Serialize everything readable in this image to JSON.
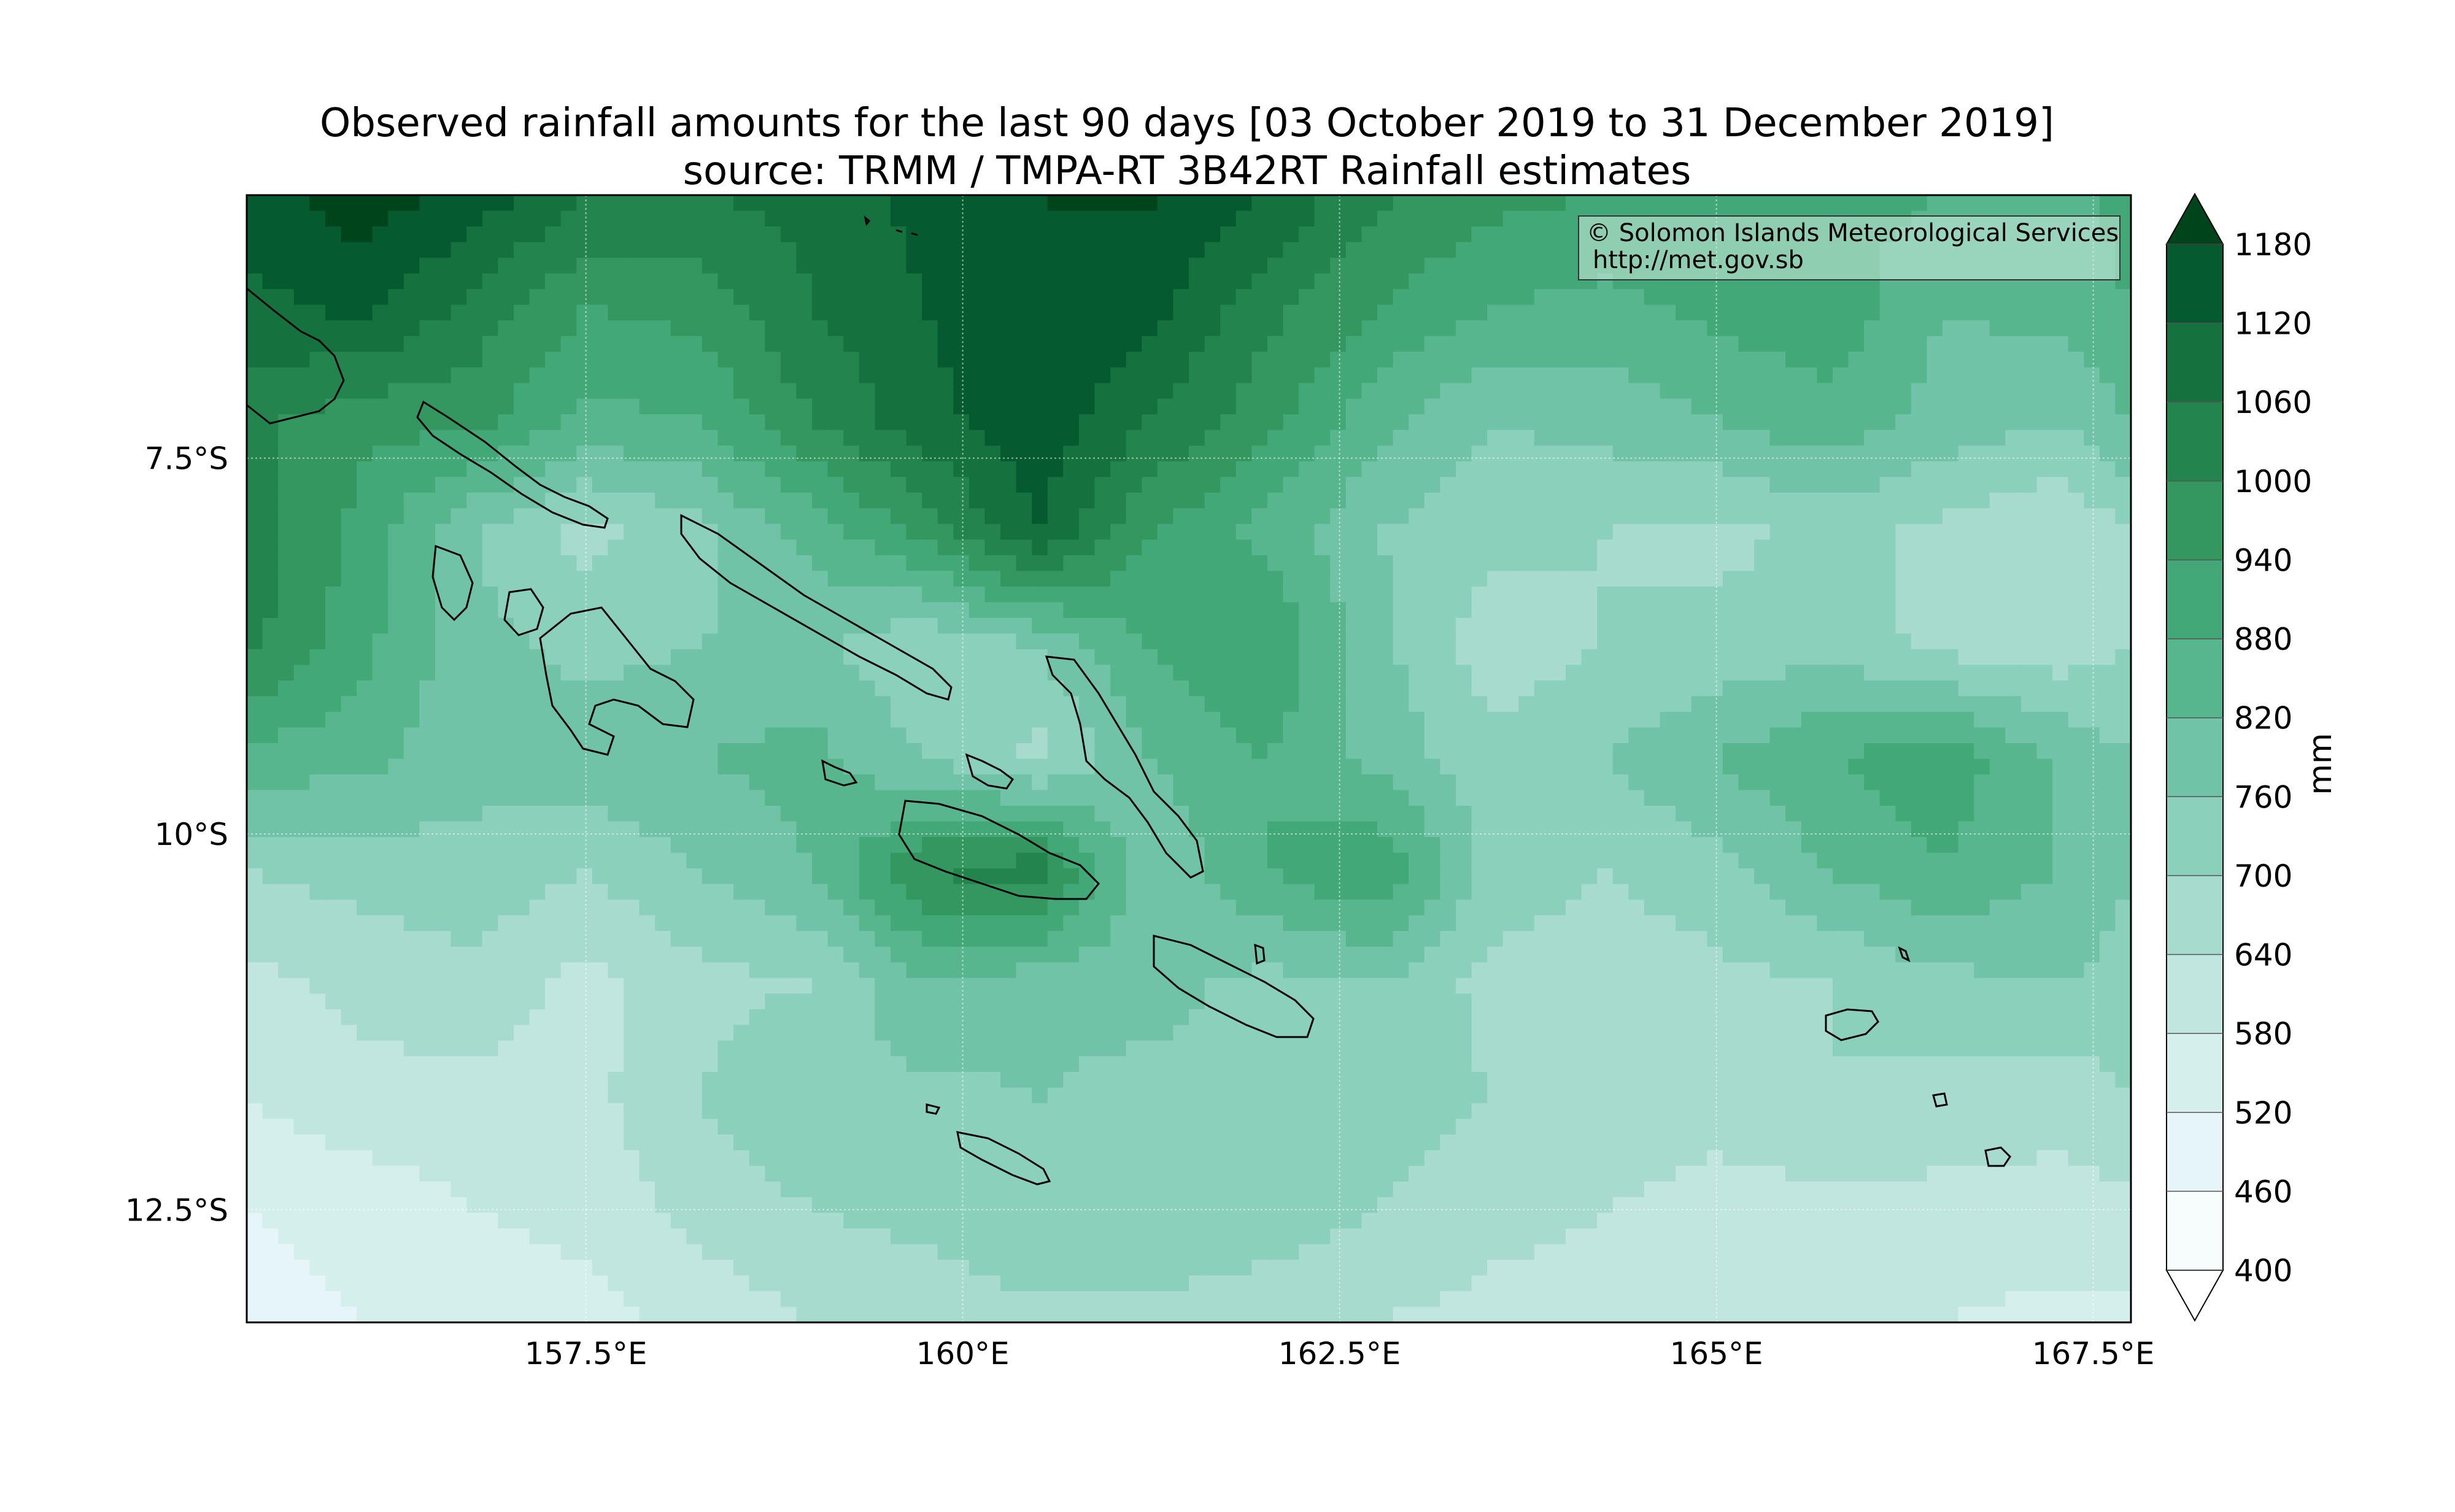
{
  "title": {
    "line1": "Observed rainfall amounts for the last 90 days [03 October 2019 to 31 December 2019]",
    "line2": "source: TRMM / TMPA-RT 3B42RT Rainfall estimates"
  },
  "credit": {
    "line1": "© Solomon Islands Meteorological Services",
    "line2": "http://met.gov.sb"
  },
  "chart_data": {
    "type": "heatmap",
    "title": "Observed rainfall amounts for the last 90 days [03 October 2019 to 31 December 2019]",
    "subtitle": "source: TRMM / TMPA-RT 3B42RT Rainfall estimates",
    "colorbar_label": "mm",
    "colorbar_levels": [
      400,
      460,
      520,
      580,
      640,
      700,
      760,
      820,
      880,
      940,
      1000,
      1060,
      1120,
      1180
    ],
    "colorbar_extend": "both",
    "x_range_degE": [
      155.25,
      167.75
    ],
    "y_range_degS": [
      5.75,
      13.25
    ],
    "x_ticks": [
      157.5,
      160,
      162.5,
      165,
      167.5
    ],
    "x_tick_labels": [
      "157.5°E",
      "160°E",
      "162.5°E",
      "165°E",
      "167.5°E"
    ],
    "y_ticks": [
      7.5,
      10,
      12.5
    ],
    "y_tick_labels": [
      "7.5°S",
      "10°S",
      "12.5°S"
    ],
    "grid": true,
    "colors": [
      "#f7fcfd",
      "#e5f5f9",
      "#d5efed",
      "#c0e6df",
      "#a6dbcd",
      "#8bd0bb",
      "#70c3a6",
      "#58b68f",
      "#43a877",
      "#34975f",
      "#23854d",
      "#15723e",
      "#055b2f",
      "#00441b"
    ],
    "rainfall_field_mm": {
      "lat_degS": [
        5.75,
        6.5,
        7.25,
        8.0,
        8.75,
        9.5,
        10.25,
        11.0,
        11.75,
        12.5,
        13.25
      ],
      "lon_degE": [
        155.25,
        156.0,
        156.75,
        157.5,
        158.25,
        159.0,
        159.75,
        160.5,
        161.25,
        162.0,
        162.75,
        163.5,
        164.25,
        165.0,
        165.75,
        166.5,
        167.25,
        167.75
      ],
      "values": [
        [
          1090,
          1150,
          1100,
          1000,
          1000,
          1020,
          1080,
          1120,
          1130,
          1060,
          950,
          900,
          880,
          860,
          840,
          820,
          800,
          840
        ],
        [
          1040,
          1080,
          980,
          880,
          900,
          1000,
          1060,
          1110,
          1080,
          960,
          880,
          820,
          800,
          840,
          860,
          760,
          780,
          820
        ],
        [
          960,
          900,
          900,
          800,
          820,
          940,
          1040,
          1100,
          1000,
          900,
          780,
          700,
          720,
          760,
          800,
          740,
          700,
          760
        ],
        [
          980,
          860,
          700,
          620,
          680,
          780,
          900,
          1060,
          880,
          800,
          700,
          660,
          640,
          620,
          660,
          620,
          580,
          640
        ],
        [
          960,
          840,
          720,
          680,
          700,
          720,
          640,
          700,
          820,
          880,
          720,
          600,
          640,
          660,
          680,
          620,
          600,
          640
        ],
        [
          800,
          780,
          720,
          740,
          760,
          780,
          700,
          620,
          760,
          820,
          740,
          660,
          700,
          760,
          820,
          860,
          760,
          700
        ],
        [
          640,
          660,
          680,
          640,
          700,
          760,
          940,
          980,
          700,
          820,
          880,
          680,
          640,
          680,
          760,
          820,
          760,
          700
        ],
        [
          560,
          600,
          620,
          560,
          620,
          640,
          760,
          720,
          720,
          680,
          700,
          620,
          600,
          620,
          640,
          680,
          700,
          680
        ],
        [
          520,
          560,
          560,
          560,
          640,
          700,
          680,
          700,
          680,
          700,
          680,
          640,
          620,
          600,
          640,
          620,
          600,
          640
        ],
        [
          460,
          480,
          520,
          540,
          600,
          640,
          660,
          700,
          700,
          680,
          640,
          600,
          580,
          560,
          560,
          560,
          560,
          560
        ],
        [
          440,
          460,
          480,
          500,
          540,
          580,
          600,
          620,
          620,
          600,
          580,
          560,
          560,
          540,
          520,
          520,
          500,
          500
        ]
      ]
    }
  }
}
